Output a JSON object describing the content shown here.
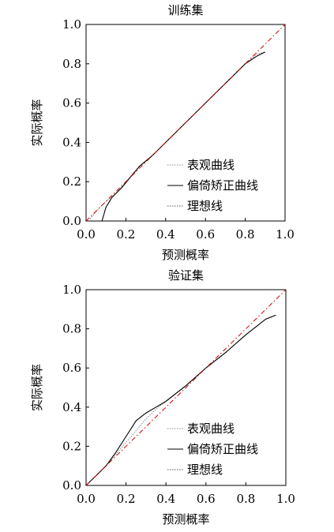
{
  "chart_data": [
    {
      "type": "line",
      "title": "训练集",
      "xlabel": "预测概率",
      "ylabel": "实际概率",
      "xlim": [
        0,
        1
      ],
      "ylim": [
        0,
        1
      ],
      "xticks": [
        "0.0",
        "0.2",
        "0.4",
        "0.6",
        "0.8",
        "1.0"
      ],
      "yticks": [
        "0.0",
        "0.2",
        "0.4",
        "0.6",
        "0.8",
        "1.0"
      ],
      "grid": false,
      "legend_position": "bottom-right",
      "series": [
        {
          "name": "表观曲线",
          "color": "#888888",
          "style": "dotted",
          "x": [
            0.02,
            0.06,
            0.1,
            0.15,
            0.2,
            0.27,
            0.35,
            0.43,
            0.5,
            0.6,
            0.7,
            0.8,
            0.86,
            0.9
          ],
          "y": [
            0.01,
            0.06,
            0.1,
            0.14,
            0.2,
            0.28,
            0.35,
            0.43,
            0.5,
            0.6,
            0.7,
            0.8,
            0.85,
            0.86
          ]
        },
        {
          "name": "偏倚矫正曲线",
          "color": "#000000",
          "style": "solid",
          "x": [
            0.08,
            0.1,
            0.13,
            0.18,
            0.22,
            0.27,
            0.33,
            0.4,
            0.5,
            0.6,
            0.7,
            0.8,
            0.86,
            0.9
          ],
          "y": [
            0.0,
            0.07,
            0.12,
            0.17,
            0.22,
            0.28,
            0.33,
            0.4,
            0.5,
            0.6,
            0.7,
            0.8,
            0.84,
            0.86
          ]
        },
        {
          "name": "理想线",
          "color": "#cc0000",
          "style": "dash-dot",
          "x": [
            0,
            1
          ],
          "y": [
            0,
            1
          ]
        }
      ]
    },
    {
      "type": "line",
      "title": "验证集",
      "xlabel": "预测概率",
      "ylabel": "实际概率",
      "xlim": [
        0,
        1
      ],
      "ylim": [
        0,
        1
      ],
      "xticks": [
        "0.0",
        "0.2",
        "0.4",
        "0.6",
        "0.8",
        "1.0"
      ],
      "yticks": [
        "0.0",
        "0.2",
        "0.4",
        "0.6",
        "0.8",
        "1.0"
      ],
      "grid": false,
      "legend_position": "bottom-right",
      "series": [
        {
          "name": "表观曲线",
          "color": "#888888",
          "style": "dotted",
          "x": [
            0.0,
            0.05,
            0.1,
            0.15,
            0.2,
            0.25,
            0.3,
            0.35,
            0.4,
            0.5,
            0.6,
            0.7,
            0.8,
            0.9,
            0.95
          ],
          "y": [
            0.0,
            0.05,
            0.1,
            0.16,
            0.22,
            0.28,
            0.34,
            0.39,
            0.43,
            0.51,
            0.6,
            0.68,
            0.77,
            0.85,
            0.87
          ]
        },
        {
          "name": "偏倚矫正曲线",
          "color": "#000000",
          "style": "solid",
          "x": [
            0.0,
            0.05,
            0.1,
            0.15,
            0.2,
            0.25,
            0.3,
            0.35,
            0.4,
            0.5,
            0.6,
            0.7,
            0.8,
            0.9,
            0.95
          ],
          "y": [
            0.0,
            0.05,
            0.1,
            0.17,
            0.25,
            0.33,
            0.37,
            0.4,
            0.43,
            0.51,
            0.6,
            0.68,
            0.77,
            0.85,
            0.87
          ]
        },
        {
          "name": "理想线",
          "color": "#cc0000",
          "style": "dash-dot",
          "x": [
            0,
            1
          ],
          "y": [
            0,
            1
          ]
        }
      ]
    }
  ]
}
